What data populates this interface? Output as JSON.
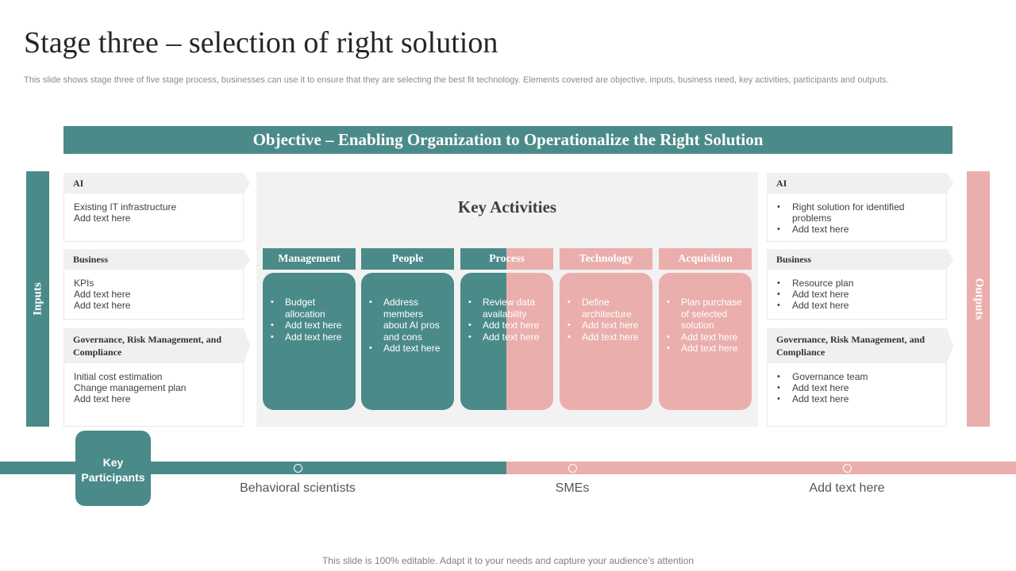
{
  "slide": {
    "title": "Stage three – selection of right solution",
    "subtitle": "This slide shows stage three of five stage process, businesses can use it to ensure that they are selecting the best fit technology. Elements covered are objective, inputs, business need, key activities, participants and outputs.",
    "objective": "Objective –  Enabling Organization to Operationalize the Right Solution",
    "footer": "This slide is 100% editable. Adapt it to your needs and capture your audience’s attention"
  },
  "colors": {
    "teal": "#4a8b89",
    "pink": "#eaaeac",
    "panel": "#f2f2f2"
  },
  "inputs": {
    "label": "Inputs",
    "cards": [
      {
        "heading": "AI",
        "lines": [
          "Existing IT infrastructure",
          "Add text here"
        ]
      },
      {
        "heading": "Business",
        "lines": [
          "KPIs",
          "Add text here",
          "Add text here"
        ]
      },
      {
        "heading": "Governance, Risk Management, and Compliance",
        "lines": [
          "Initial cost estimation",
          "Change management plan",
          "Add text here"
        ]
      }
    ]
  },
  "outputs": {
    "label": "Outputs",
    "cards": [
      {
        "heading": "AI",
        "bullets": [
          "Right solution for identified problems",
          "Add text here"
        ]
      },
      {
        "heading": "Business",
        "bullets": [
          "Resource plan",
          "Add text here",
          "Add text here"
        ]
      },
      {
        "heading": "Governance, Risk Management, and Compliance",
        "bullets": [
          "Governance team",
          "Add text here",
          "Add text here"
        ]
      }
    ]
  },
  "key_activities": {
    "title": "Key Activities",
    "columns": [
      {
        "name": "Management",
        "bullets": [
          "Budget allocation",
          "Add text here",
          "Add text here"
        ]
      },
      {
        "name": "People",
        "bullets": [
          "Address members about AI pros and cons",
          "Add text here"
        ]
      },
      {
        "name": "Process",
        "bullets": [
          "Review data availability",
          "Add text here",
          "Add text here"
        ]
      },
      {
        "name": "Technology",
        "bullets": [
          "Define architecture",
          "Add text here",
          "Add text here"
        ]
      },
      {
        "name": "Acquisition",
        "bullets": [
          "Plan purchase of selected solution",
          "Add text here",
          "Add text here"
        ]
      }
    ]
  },
  "participants": {
    "label": "Key Participants",
    "items": [
      "Behavioral scientists",
      "SMEs",
      "Add text here"
    ]
  }
}
